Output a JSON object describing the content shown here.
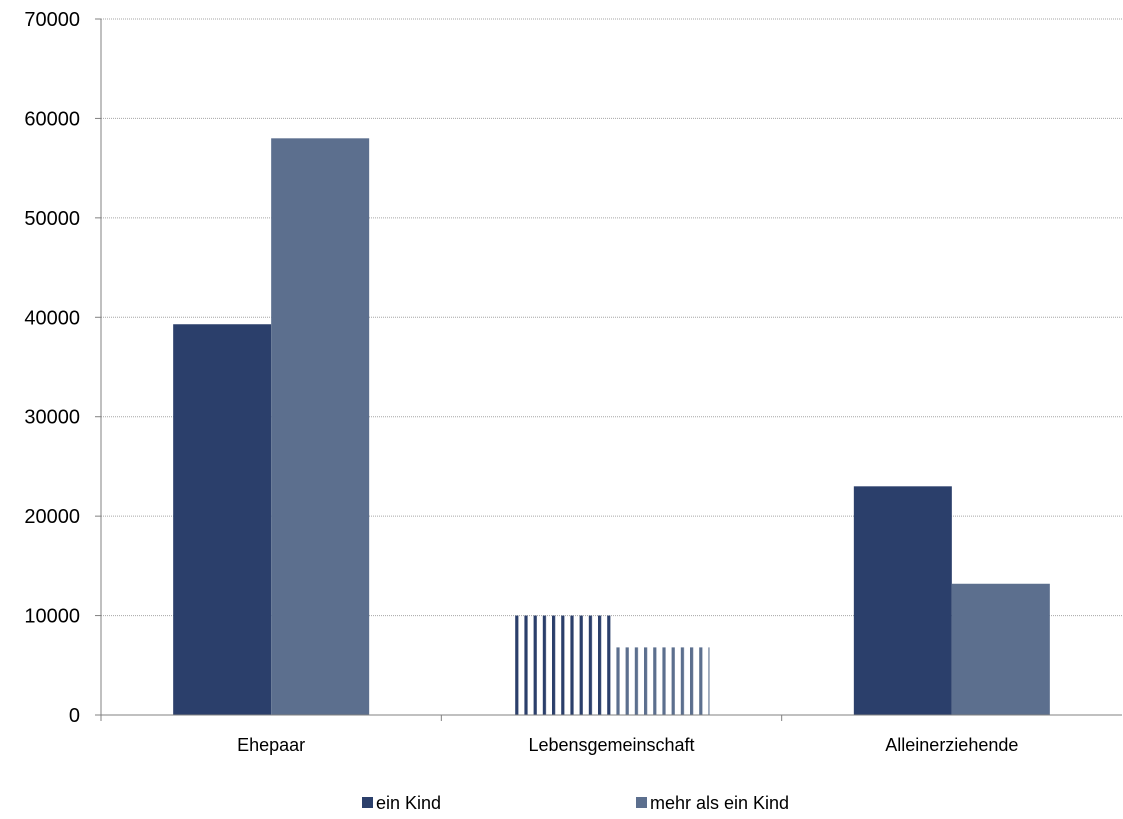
{
  "chart_data": {
    "type": "bar",
    "title": "",
    "xlabel": "",
    "ylabel": "",
    "categories": [
      "Ehepaar",
      "Lebensgemeinschaft",
      "Alleinerziehende"
    ],
    "series": [
      {
        "name": "ein Kind",
        "values": [
          39300,
          10000,
          23000
        ],
        "color": "#2b3f6b"
      },
      {
        "name": "mehr als ein Kind",
        "values": [
          58000,
          6800,
          13200
        ],
        "color": "#5c6f8e"
      }
    ],
    "ylim": [
      0,
      70000
    ],
    "yticks": [
      0,
      10000,
      20000,
      30000,
      40000,
      50000,
      60000,
      70000
    ],
    "grid": true,
    "legend_position": "bottom",
    "striped_category": "Lebensgemeinschaft"
  }
}
